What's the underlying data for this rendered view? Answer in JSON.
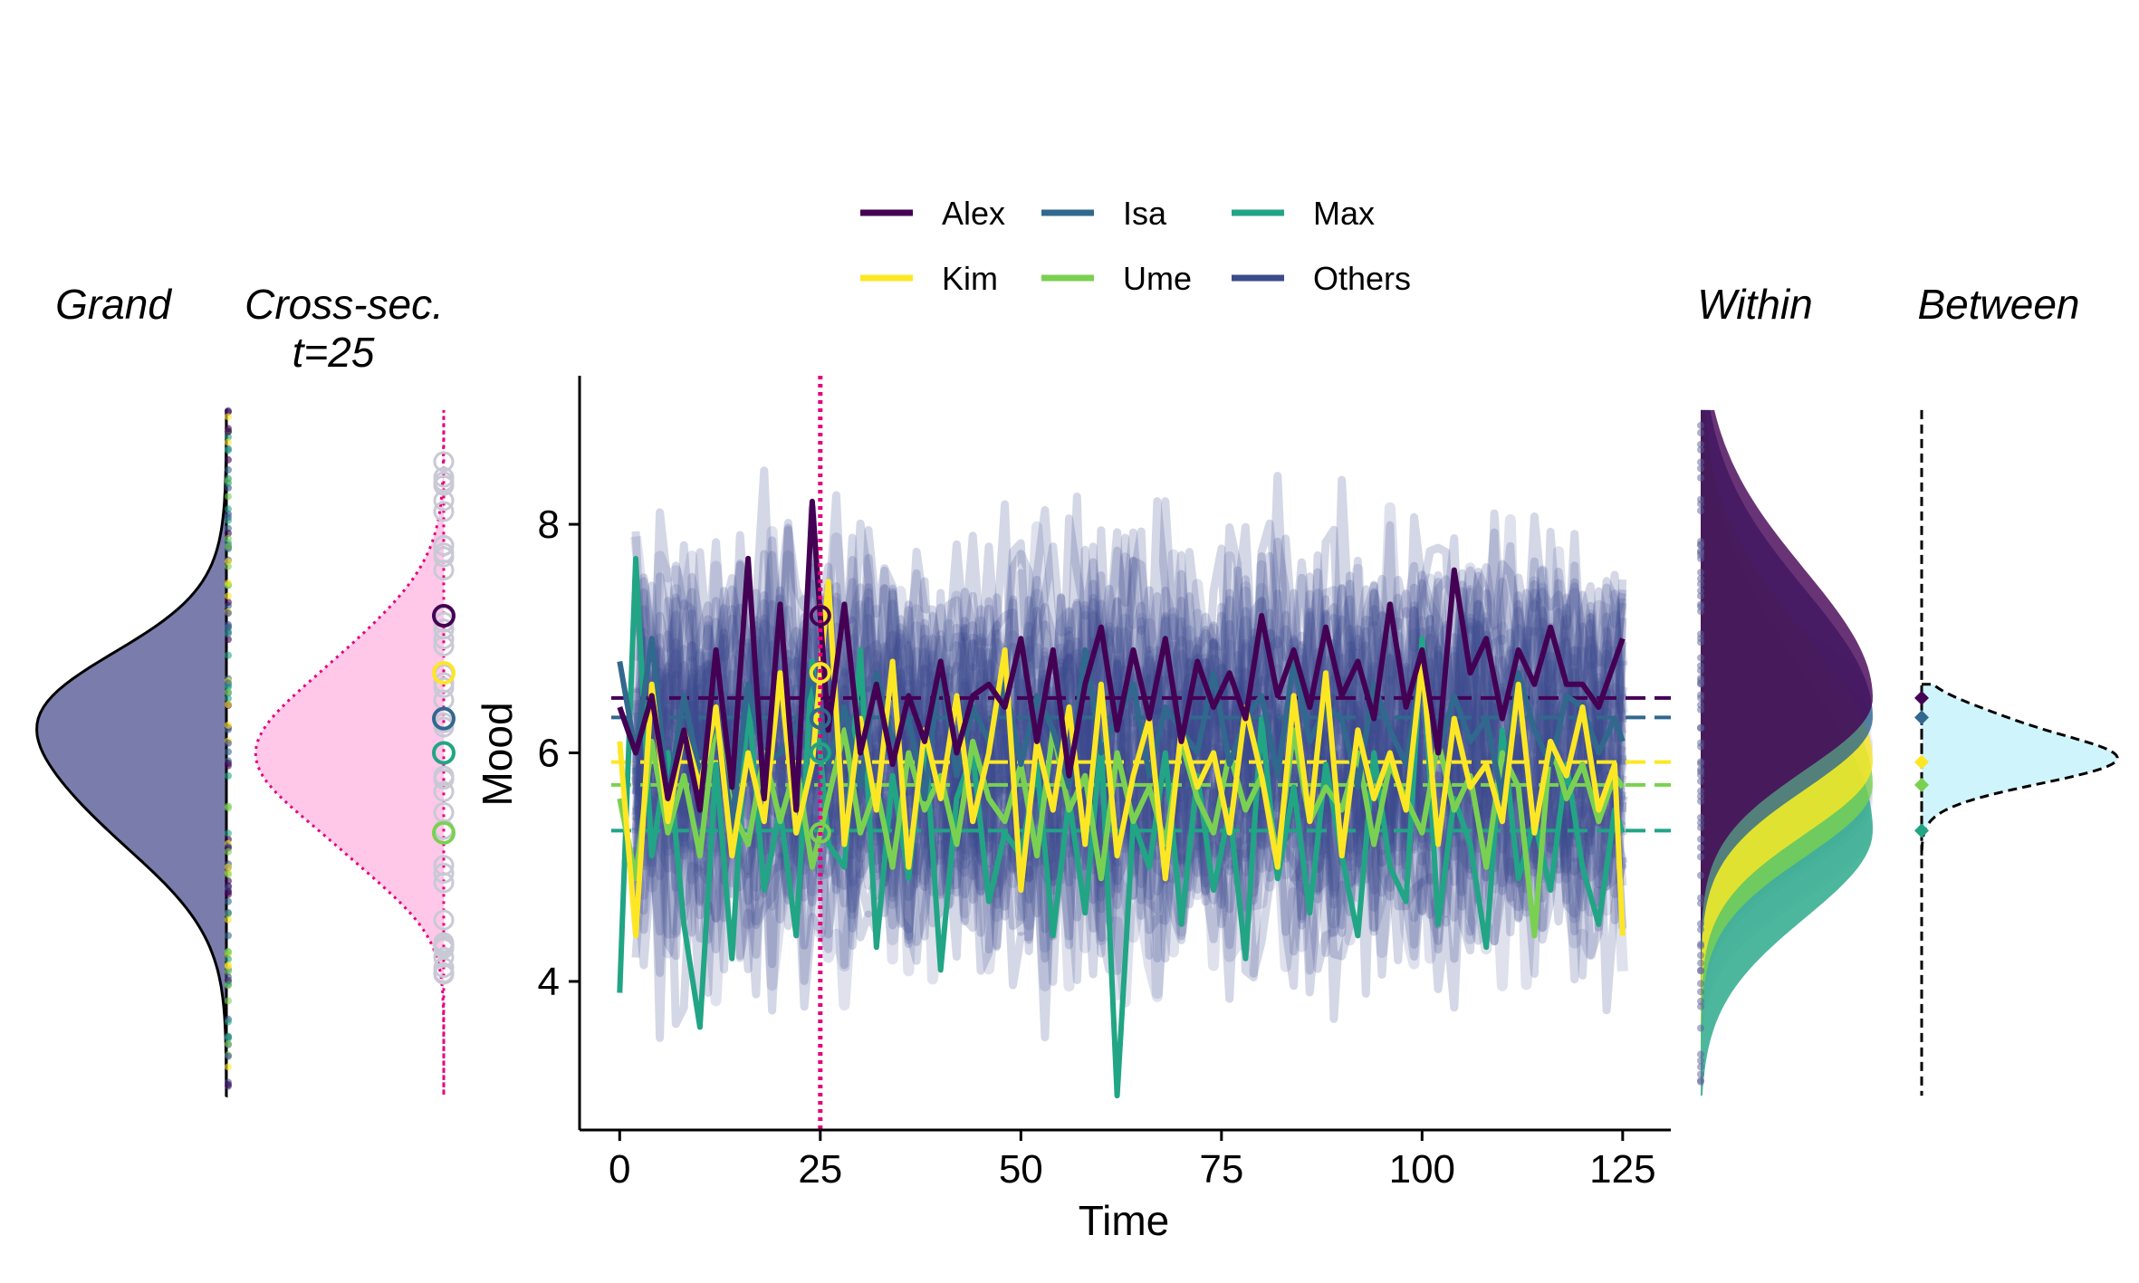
{
  "chart_data": {
    "type": "line",
    "xlabel": "Time",
    "ylabel": "Mood",
    "xlim": [
      -5,
      131
    ],
    "ylim": [
      2.7,
      9.3
    ],
    "xticks": [
      0,
      25,
      50,
      75,
      100,
      125
    ],
    "yticks": [
      4,
      6,
      8
    ],
    "vline": {
      "x": 25,
      "color": "#e6007e"
    },
    "legend": {
      "position": "top",
      "entries": [
        {
          "name": "Alex",
          "color": "#440154"
        },
        {
          "name": "Isa",
          "color": "#31688e"
        },
        {
          "name": "Max",
          "color": "#21a585"
        },
        {
          "name": "Kim",
          "color": "#fde725"
        },
        {
          "name": "Ume",
          "color": "#7ad151"
        },
        {
          "name": "Others",
          "color": "#3b4b8c"
        }
      ]
    },
    "series": [
      {
        "name": "Alex",
        "color": "#440154",
        "mean": 6.48,
        "x": [
          0,
          2,
          4,
          6,
          8,
          10,
          12,
          14,
          16,
          18,
          20,
          22,
          24,
          26,
          28,
          30,
          32,
          34,
          36,
          38,
          40,
          42,
          44,
          46,
          48,
          50,
          52,
          54,
          56,
          58,
          60,
          62,
          64,
          66,
          68,
          70,
          72,
          74,
          76,
          78,
          80,
          82,
          84,
          86,
          88,
          90,
          92,
          94,
          96,
          98,
          100,
          102,
          104,
          106,
          108,
          110,
          112,
          114,
          116,
          118,
          120,
          122,
          124,
          125
        ],
        "values": [
          6.4,
          6.0,
          6.5,
          5.6,
          6.2,
          5.5,
          6.9,
          5.7,
          7.7,
          5.6,
          7.3,
          5.5,
          8.2,
          6.2,
          7.3,
          6.0,
          6.6,
          5.9,
          6.5,
          6.1,
          6.8,
          6.0,
          6.5,
          6.6,
          6.4,
          7.0,
          6.1,
          6.9,
          5.8,
          6.6,
          7.1,
          6.2,
          6.9,
          6.3,
          7.0,
          6.1,
          6.8,
          6.4,
          6.7,
          6.3,
          7.2,
          6.5,
          6.9,
          6.4,
          7.1,
          6.5,
          6.8,
          6.3,
          7.3,
          6.4,
          6.9,
          6.0,
          7.6,
          6.7,
          7.0,
          6.3,
          6.9,
          6.6,
          7.1,
          6.6,
          6.6,
          6.4,
          6.8,
          7.0
        ]
      },
      {
        "name": "Isa",
        "color": "#31688e",
        "mean": 6.31,
        "x": [
          0,
          2,
          4,
          6,
          8,
          10,
          12,
          14,
          16,
          18,
          20,
          22,
          24,
          26,
          28,
          30,
          32,
          34,
          36,
          38,
          40,
          42,
          44,
          46,
          48,
          50,
          52,
          54,
          56,
          58,
          60,
          62,
          64,
          66,
          68,
          70,
          72,
          74,
          76,
          78,
          80,
          82,
          84,
          86,
          88,
          90,
          92,
          94,
          96,
          98,
          100,
          102,
          104,
          106,
          108,
          110,
          112,
          114,
          116,
          118,
          120,
          122,
          124,
          125
        ],
        "values": [
          6.8,
          6.0,
          7.0,
          5.6,
          6.5,
          5.8,
          6.3,
          5.4,
          6.6,
          5.9,
          6.0,
          6.2,
          6.7,
          5.9,
          6.4,
          5.7,
          6.7,
          6.1,
          6.3,
          5.6,
          6.8,
          5.8,
          6.4,
          6.1,
          6.6,
          5.9,
          6.5,
          6.2,
          5.7,
          6.9,
          6.0,
          6.3,
          6.6,
          5.8,
          6.4,
          6.2,
          6.0,
          6.7,
          5.9,
          6.3,
          6.5,
          5.8,
          6.8,
          6.1,
          6.4,
          6.3,
          5.7,
          6.6,
          6.2,
          5.9,
          6.8,
          6.0,
          6.5,
          6.1,
          6.3,
          5.6,
          6.7,
          6.2,
          5.9,
          6.5,
          6.4,
          6.0,
          6.3,
          6.1
        ]
      },
      {
        "name": "Max",
        "color": "#21a585",
        "mean": 5.32,
        "x": [
          0,
          2,
          4,
          6,
          8,
          10,
          12,
          14,
          16,
          18,
          20,
          22,
          24,
          26,
          28,
          30,
          32,
          34,
          36,
          38,
          40,
          42,
          44,
          46,
          48,
          50,
          52,
          54,
          56,
          58,
          60,
          62,
          64,
          66,
          68,
          70,
          72,
          74,
          76,
          78,
          80,
          82,
          84,
          86,
          88,
          90,
          92,
          94,
          96,
          98,
          100,
          102,
          104,
          106,
          108,
          110,
          112,
          114,
          116,
          118,
          120,
          122,
          124,
          125
        ],
        "values": [
          3.9,
          7.7,
          5.1,
          6.0,
          4.5,
          3.6,
          5.9,
          4.2,
          6.5,
          4.8,
          5.5,
          4.4,
          6.8,
          5.2,
          5.0,
          6.9,
          4.3,
          5.8,
          4.9,
          6.2,
          4.1,
          5.6,
          6.0,
          4.7,
          5.3,
          5.1,
          5.9,
          4.4,
          5.6,
          4.6,
          6.1,
          3.0,
          5.4,
          5.0,
          6.0,
          4.5,
          5.8,
          4.8,
          5.5,
          4.2,
          6.3,
          4.9,
          5.7,
          4.6,
          5.9,
          5.1,
          4.4,
          6.0,
          5.0,
          4.7,
          7.0,
          4.5,
          5.6,
          5.2,
          4.3,
          6.2,
          4.9,
          5.4,
          4.8,
          5.9,
          5.0,
          4.5,
          5.5,
          5.3
        ]
      },
      {
        "name": "Kim",
        "color": "#fde725",
        "mean": 5.92,
        "x": [
          0,
          2,
          4,
          6,
          8,
          10,
          12,
          14,
          16,
          18,
          20,
          22,
          24,
          26,
          28,
          30,
          32,
          34,
          36,
          38,
          40,
          42,
          44,
          46,
          48,
          50,
          52,
          54,
          56,
          58,
          60,
          62,
          64,
          66,
          68,
          70,
          72,
          74,
          76,
          78,
          80,
          82,
          84,
          86,
          88,
          90,
          92,
          94,
          96,
          98,
          100,
          102,
          104,
          106,
          108,
          110,
          112,
          114,
          116,
          118,
          120,
          122,
          124,
          125
        ],
        "values": [
          6.1,
          4.4,
          6.6,
          5.4,
          6.2,
          5.7,
          6.4,
          5.1,
          6.0,
          5.4,
          6.7,
          5.3,
          5.9,
          7.5,
          5.2,
          6.3,
          5.5,
          6.8,
          5.0,
          6.2,
          5.6,
          6.5,
          5.4,
          6.0,
          6.9,
          4.8,
          6.1,
          5.5,
          6.4,
          5.2,
          6.6,
          5.1,
          5.8,
          6.3,
          4.9,
          6.2,
          5.7,
          6.0,
          5.3,
          6.4,
          5.8,
          5.0,
          6.5,
          5.4,
          6.7,
          5.1,
          6.2,
          5.6,
          6.0,
          5.5,
          6.8,
          5.2,
          6.3,
          5.7,
          5.9,
          5.4,
          6.6,
          5.3,
          6.1,
          5.8,
          6.4,
          5.5,
          5.9,
          4.4
        ]
      },
      {
        "name": "Ume",
        "color": "#7ad151",
        "mean": 5.72,
        "x": [
          0,
          2,
          4,
          6,
          8,
          10,
          12,
          14,
          16,
          18,
          20,
          22,
          24,
          26,
          28,
          30,
          32,
          34,
          36,
          38,
          40,
          42,
          44,
          46,
          48,
          50,
          52,
          54,
          56,
          58,
          60,
          62,
          64,
          66,
          68,
          70,
          72,
          74,
          76,
          78,
          80,
          82,
          84,
          86,
          88,
          90,
          92,
          94,
          96,
          98,
          100,
          102,
          104,
          106,
          108,
          110,
          112,
          114,
          116,
          118,
          120,
          122,
          124,
          125
        ],
        "values": [
          5.6,
          4.9,
          6.1,
          5.3,
          5.8,
          5.1,
          6.3,
          5.5,
          5.2,
          6.0,
          5.4,
          5.9,
          5.0,
          5.6,
          6.2,
          5.3,
          5.7,
          5.0,
          6.0,
          5.5,
          5.8,
          5.2,
          6.1,
          5.6,
          5.4,
          5.9,
          5.1,
          6.2,
          5.5,
          5.8,
          4.9,
          6.0,
          5.4,
          5.7,
          5.2,
          6.1,
          5.6,
          5.3,
          6.0,
          5.5,
          5.8,
          5.1,
          6.2,
          5.4,
          5.7,
          5.5,
          6.0,
          5.2,
          5.9,
          5.6,
          5.3,
          6.1,
          5.5,
          5.8,
          5.0,
          6.0,
          5.7,
          4.4,
          6.1,
          5.6,
          5.9,
          5.4,
          5.8,
          5.7
        ]
      }
    ],
    "others": {
      "name": "Others",
      "color": "#3b4b8c",
      "count": 40,
      "mean_range": [
        5.0,
        7.0
      ],
      "sd": 0.85
    }
  },
  "side_panels": {
    "grand": {
      "title": "Grand",
      "fill": "#7a7dab"
    },
    "cross": {
      "title_line1": "Cross-sec.",
      "title_line2": "t=25",
      "fill": "#ffc8e8",
      "stroke": "#e6007e",
      "time": 25
    },
    "within": {
      "title": "Within"
    },
    "between": {
      "title": "Between",
      "fill": "#cff4fc"
    }
  }
}
